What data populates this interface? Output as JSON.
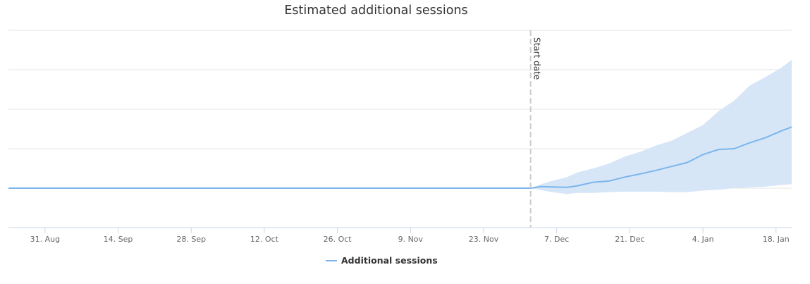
{
  "chart_data": {
    "type": "area",
    "title": "Estimated additional sessions",
    "x_ticks": [
      "31. Aug",
      "14. Sep",
      "28. Sep",
      "12. Oct",
      "26. Oct",
      "9. Nov",
      "23. Nov",
      "7. Dec",
      "21. Dec",
      "4. Jan",
      "18. Jan"
    ],
    "x_range": [
      "2020-08-24",
      "2021-01-21"
    ],
    "y_range": [
      -1,
      4
    ],
    "y_grid_levels": [
      -1,
      0,
      1,
      2,
      3,
      4
    ],
    "y_tick_labels_shown": false,
    "grid": true,
    "annotations": [
      {
        "type": "vertical-line",
        "x": "2020-12-02",
        "label": "Start date"
      }
    ],
    "legend": {
      "position": "bottom-center",
      "entries": [
        "Additional sessions"
      ]
    },
    "colors": {
      "series_line": "#7cb5ec",
      "band_fill": "#d6e6f7",
      "grid": "#e6e6e6",
      "annotation_line": "#cccccc"
    },
    "series": [
      {
        "name": "Additional sessions",
        "x": [
          "2020-08-24",
          "2020-12-02",
          "2020-12-04",
          "2020-12-06",
          "2020-12-09",
          "2020-12-11",
          "2020-12-14",
          "2020-12-17",
          "2020-12-20",
          "2020-12-23",
          "2020-12-26",
          "2020-12-29",
          "2021-01-01",
          "2021-01-04",
          "2021-01-07",
          "2021-01-10",
          "2021-01-13",
          "2021-01-16",
          "2021-01-19",
          "2021-01-21"
        ],
        "values": [
          0,
          0,
          0.04,
          0.03,
          0.02,
          0.06,
          0.15,
          0.18,
          0.28,
          0.36,
          0.45,
          0.55,
          0.65,
          0.85,
          0.98,
          1.0,
          1.15,
          1.28,
          1.45,
          1.55
        ],
        "lower": [
          0,
          0,
          -0.05,
          -0.1,
          -0.15,
          -0.12,
          -0.12,
          -0.1,
          -0.09,
          -0.09,
          -0.09,
          -0.1,
          -0.1,
          -0.06,
          -0.04,
          0,
          0.02,
          0.04,
          0.08,
          0.1
        ],
        "upper": [
          0,
          0,
          0.1,
          0.18,
          0.28,
          0.4,
          0.5,
          0.62,
          0.8,
          0.92,
          1.08,
          1.2,
          1.4,
          1.6,
          1.95,
          2.22,
          2.6,
          2.82,
          3.05,
          3.25
        ]
      }
    ]
  }
}
